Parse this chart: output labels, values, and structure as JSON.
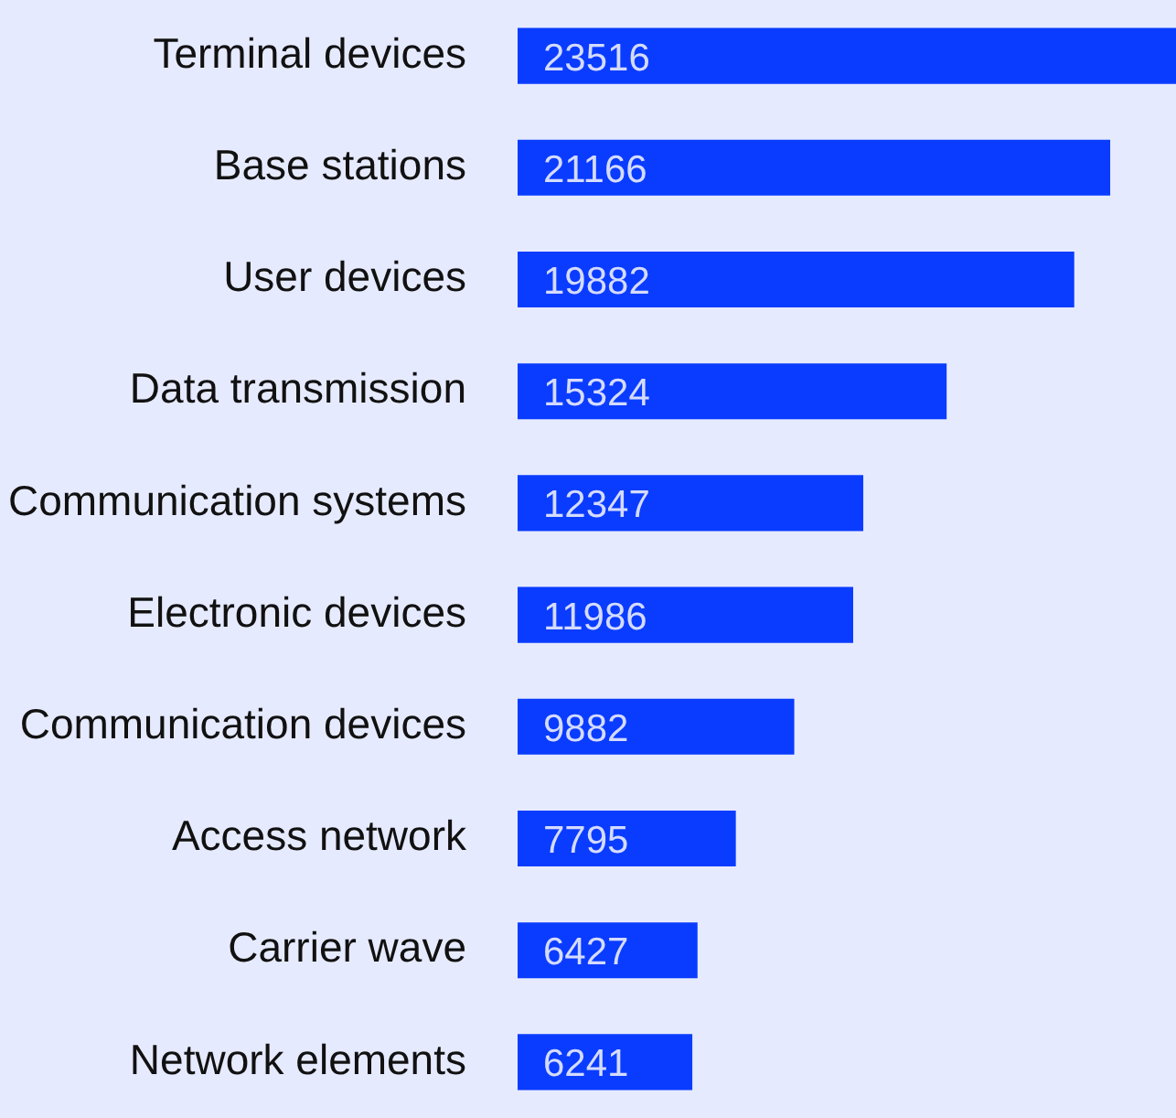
{
  "chart_data": {
    "type": "bar",
    "orientation": "horizontal",
    "categories": [
      "Terminal devices",
      "Base stations",
      "User devices",
      "Data transmission",
      "Communication systems",
      "Electronic devices",
      "Communication devices",
      "Access network",
      "Carrier wave",
      "Network elements"
    ],
    "values": [
      23516,
      21166,
      19882,
      15324,
      12347,
      11986,
      9882,
      7795,
      6427,
      6241
    ],
    "color": "#0a3cff",
    "data_labels": true,
    "tick_labels": "y"
  }
}
